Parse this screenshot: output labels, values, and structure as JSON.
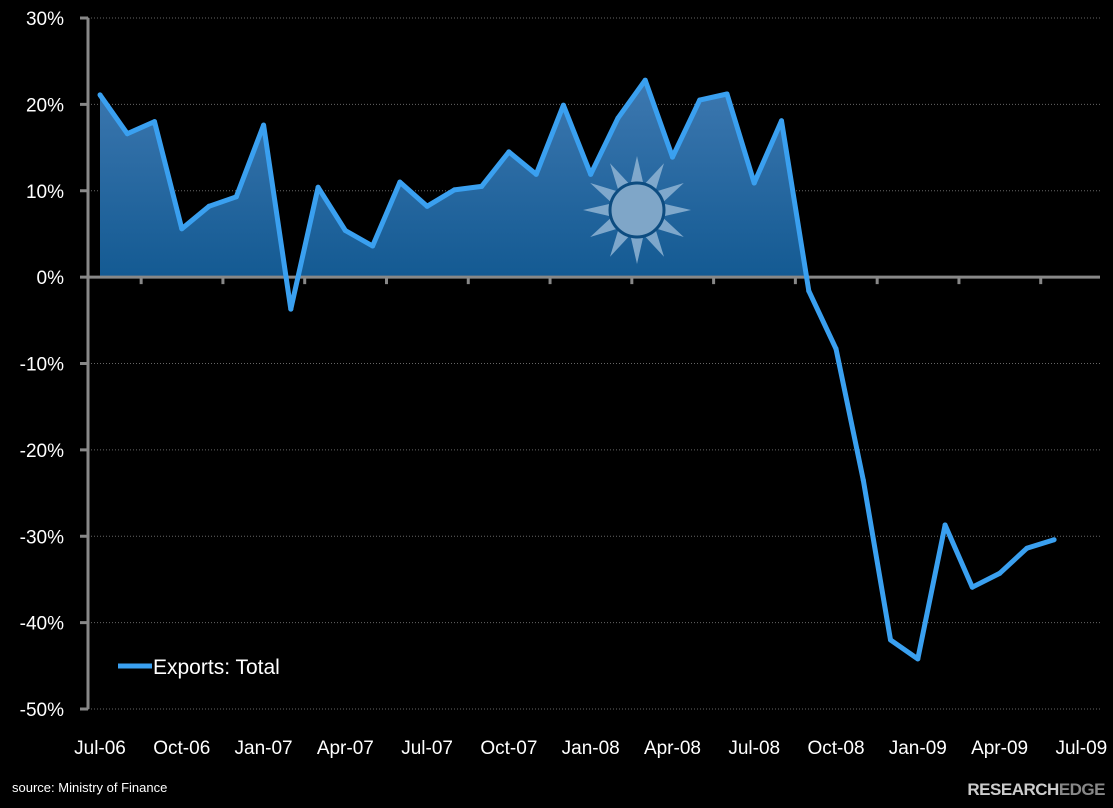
{
  "chart_data": {
    "type": "area",
    "title": "",
    "xlabel": "",
    "ylabel": "",
    "ylim": [
      -50,
      30
    ],
    "yticks": [
      "30%",
      "20%",
      "10%",
      "0%",
      "-10%",
      "-20%",
      "-30%",
      "-40%",
      "-50%"
    ],
    "ytick_values": [
      30,
      20,
      10,
      0,
      -10,
      -20,
      -30,
      -40,
      -50
    ],
    "xtick_labels": [
      "Jul-06",
      "Oct-06",
      "Jan-07",
      "Apr-07",
      "Jul-07",
      "Oct-07",
      "Jan-08",
      "Apr-08",
      "Jul-08",
      "Oct-08",
      "Jan-09",
      "Apr-09",
      "Jul-09"
    ],
    "grid": "horizontal dotted",
    "legend": "bottom-left",
    "x": [
      "Jul-06",
      "Aug-06",
      "Sep-06",
      "Oct-06",
      "Nov-06",
      "Dec-06",
      "Jan-07",
      "Feb-07",
      "Mar-07",
      "Apr-07",
      "May-07",
      "Jun-07",
      "Jul-07",
      "Aug-07",
      "Sep-07",
      "Oct-07",
      "Nov-07",
      "Dec-07",
      "Jan-08",
      "Feb-08",
      "Mar-08",
      "Apr-08",
      "May-08",
      "Jun-08",
      "Jul-08",
      "Aug-08",
      "Sep-08",
      "Oct-08",
      "Nov-08",
      "Dec-08",
      "Jan-09",
      "Feb-09",
      "Mar-09",
      "Apr-09",
      "May-09",
      "Jun-09"
    ],
    "series": [
      {
        "name": "Exports: Total",
        "color": "#3aa0f0",
        "values": [
          21.1,
          16.6,
          18.0,
          5.6,
          8.2,
          9.3,
          17.6,
          -3.7,
          10.4,
          5.4,
          3.6,
          11.0,
          8.2,
          10.1,
          10.5,
          14.5,
          11.9,
          19.9,
          11.9,
          18.4,
          22.8,
          13.9,
          20.5,
          21.2,
          10.9,
          18.1,
          -1.6,
          -8.3,
          -23.5,
          -42.0,
          -44.2,
          -28.7,
          -35.9,
          -34.3,
          -31.4,
          -30.4
        ]
      }
    ],
    "fill": "positive values shaded with blue gradient",
    "watermark": "sun-emblem-icon"
  },
  "footer": {
    "source": "source: Ministry of Finance",
    "logo_text": "RESEARCHEDGE"
  }
}
